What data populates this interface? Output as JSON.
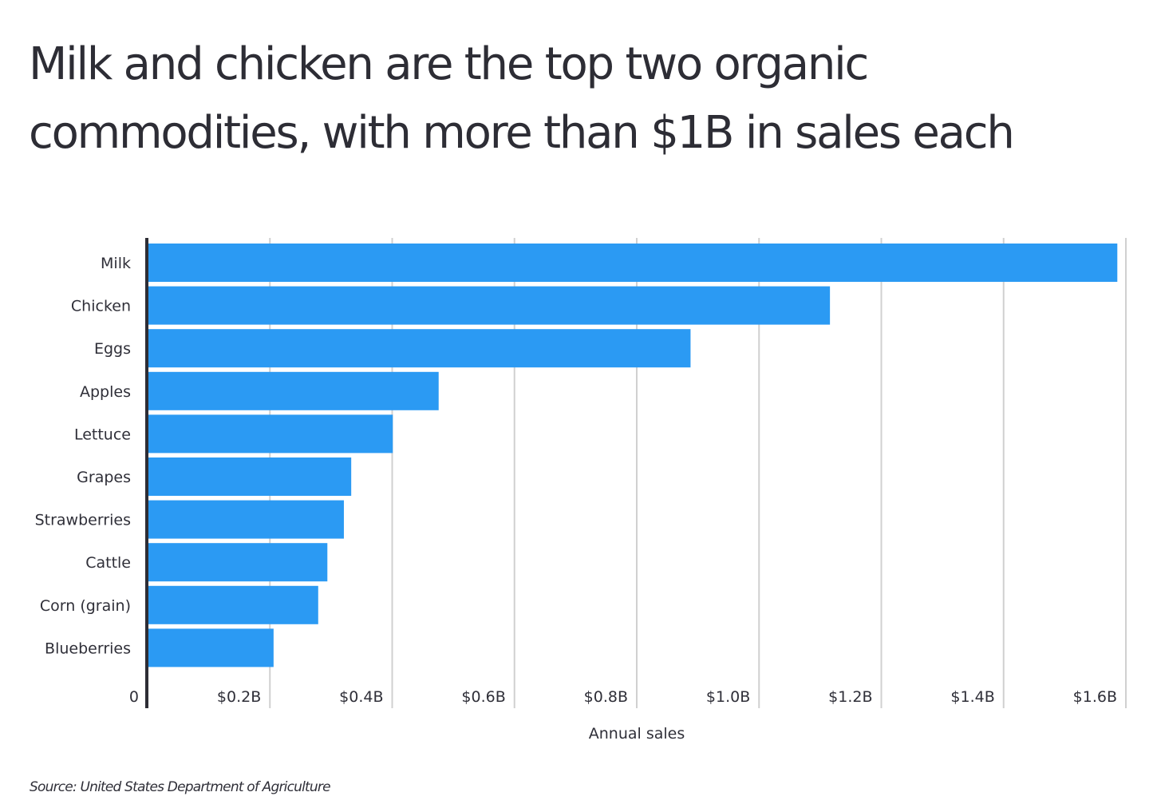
{
  "title": "Milk and chicken are the top two organic commodities, with more than $1B in sales each",
  "source": "Source:  United States Department of Agriculture",
  "colors": {
    "bar": "#2b9af3",
    "grid": "#d0d0d0",
    "axis": "#2d2d35",
    "text": "#2f2f38"
  },
  "chart_data": {
    "type": "bar",
    "orientation": "horizontal",
    "categories": [
      "Milk",
      "Chicken",
      "Eggs",
      "Apples",
      "Lettuce",
      "Grapes",
      "Strawberries",
      "Cattle",
      "Corn (grain)",
      "Blueberries"
    ],
    "values": [
      1.586,
      1.116,
      0.888,
      0.476,
      0.401,
      0.333,
      0.321,
      0.294,
      0.279,
      0.206
    ],
    "unit": "billion USD",
    "xlabel": "Annual sales",
    "ylabel": "",
    "xlim": [
      0,
      1.6
    ],
    "xticks": [
      0,
      0.2,
      0.4,
      0.6,
      0.8,
      1.0,
      1.2,
      1.4,
      1.6
    ],
    "xtick_labels": [
      "0",
      "$0.2B",
      "$0.4B",
      "$0.6B",
      "$0.8B",
      "$1.0B",
      "$1.2B",
      "$1.4B",
      "$1.6B"
    ],
    "grid": true,
    "legend": "none"
  }
}
